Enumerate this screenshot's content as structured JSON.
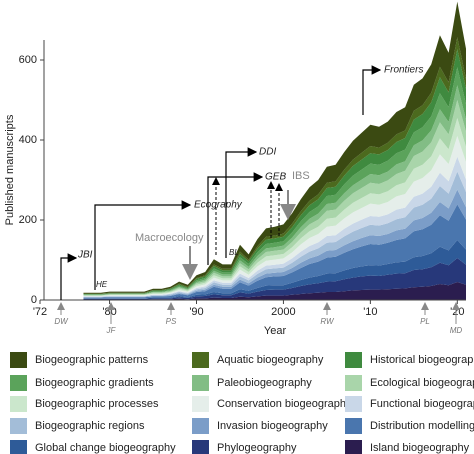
{
  "chart_data": {
    "type": "stacked_area",
    "y_label": "Published manuscripts",
    "x_label": "Year",
    "x": [
      1977,
      1978,
      1979,
      1980,
      1981,
      1982,
      1983,
      1984,
      1985,
      1986,
      1987,
      1988,
      1989,
      1990,
      1991,
      1992,
      1993,
      1994,
      1995,
      1996,
      1997,
      1998,
      1999,
      2000,
      2001,
      2002,
      2003,
      2004,
      2005,
      2006,
      2007,
      2008,
      2009,
      2010,
      2011,
      2012,
      2013,
      2014,
      2015,
      2016,
      2017,
      2018,
      2019,
      2020,
      2021
    ],
    "xlim": [
      1972,
      2021
    ],
    "xticks": [
      {
        "value": 1972,
        "label": "'72"
      },
      {
        "value": 1980,
        "label": "'80"
      },
      {
        "value": 1990,
        "label": "'90"
      },
      2000,
      {
        "value": 2010,
        "label": "'10"
      },
      {
        "value": 2020,
        "label": "'20"
      }
    ],
    "ylim": [
      0,
      750
    ],
    "yticks": [
      0,
      200,
      400,
      600
    ],
    "series": [
      {
        "name": "Biogeographic patterns",
        "color": "#3b4a12",
        "values": [
          2,
          2,
          2,
          3,
          3,
          3,
          3,
          3,
          3,
          3,
          4,
          5,
          5,
          7,
          8,
          13,
          11,
          11,
          17,
          13,
          18,
          21,
          22,
          23,
          26,
          30,
          34,
          36,
          40,
          41,
          44,
          47,
          50,
          53,
          52,
          53,
          56,
          58,
          65,
          67,
          71,
          79,
          74,
          89,
          75
        ]
      },
      {
        "name": "Aquatic biogeography",
        "color": "#4c6a1e",
        "values": [
          1,
          1,
          1,
          1,
          1,
          1,
          1,
          1,
          1,
          1,
          1,
          2,
          2,
          2,
          3,
          4,
          4,
          4,
          6,
          4,
          6,
          7,
          7,
          8,
          9,
          10,
          11,
          12,
          13,
          14,
          15,
          16,
          17,
          18,
          17,
          18,
          19,
          19,
          22,
          22,
          24,
          26,
          25,
          30,
          25
        ]
      },
      {
        "name": "Historical biogeography",
        "color": "#3f8a3f",
        "values": [
          1,
          1,
          1,
          1,
          1,
          1,
          1,
          1,
          2,
          2,
          2,
          3,
          2,
          4,
          4,
          6,
          5,
          5,
          8,
          7,
          9,
          11,
          11,
          11,
          13,
          15,
          17,
          18,
          20,
          20,
          22,
          24,
          25,
          26,
          26,
          27,
          28,
          29,
          32,
          33,
          35,
          40,
          37,
          45,
          38
        ]
      },
      {
        "name": "Biogeographic gradients",
        "color": "#5ba35b",
        "values": [
          1,
          1,
          1,
          1,
          1,
          1,
          1,
          1,
          2,
          2,
          2,
          3,
          2,
          4,
          4,
          6,
          5,
          5,
          8,
          7,
          9,
          11,
          11,
          11,
          13,
          15,
          17,
          18,
          20,
          20,
          22,
          24,
          25,
          26,
          26,
          27,
          28,
          29,
          32,
          33,
          35,
          40,
          37,
          45,
          38
        ]
      },
      {
        "name": "Paleobiogeography",
        "color": "#82bd85",
        "values": [
          1,
          1,
          1,
          1,
          1,
          1,
          1,
          1,
          1,
          1,
          2,
          2,
          2,
          3,
          4,
          5,
          5,
          5,
          7,
          6,
          8,
          9,
          9,
          10,
          11,
          13,
          14,
          15,
          17,
          17,
          19,
          20,
          21,
          22,
          22,
          22,
          24,
          24,
          27,
          28,
          30,
          33,
          31,
          37,
          31
        ]
      },
      {
        "name": "Ecological biogeography",
        "color": "#a9d5aa",
        "values": [
          1,
          1,
          1,
          1,
          1,
          1,
          1,
          1,
          2,
          2,
          2,
          3,
          2,
          4,
          4,
          6,
          5,
          5,
          8,
          7,
          9,
          11,
          11,
          11,
          13,
          15,
          17,
          18,
          20,
          20,
          22,
          24,
          25,
          26,
          26,
          27,
          28,
          29,
          32,
          33,
          35,
          40,
          37,
          45,
          38
        ]
      },
      {
        "name": "Biogeographic processes",
        "color": "#cbe7cc",
        "values": [
          1,
          1,
          1,
          1,
          1,
          1,
          1,
          1,
          2,
          2,
          2,
          3,
          2,
          4,
          4,
          6,
          5,
          5,
          8,
          7,
          9,
          11,
          11,
          11,
          13,
          15,
          17,
          18,
          20,
          20,
          22,
          24,
          25,
          26,
          26,
          27,
          28,
          29,
          32,
          33,
          35,
          40,
          37,
          45,
          38
        ]
      },
      {
        "name": "Conservation biogeography",
        "color": "#e5eeea",
        "values": [
          1,
          1,
          1,
          2,
          2,
          2,
          2,
          2,
          2,
          2,
          2,
          3,
          3,
          4,
          5,
          7,
          6,
          6,
          10,
          8,
          11,
          12,
          13,
          13,
          15,
          18,
          20,
          21,
          23,
          24,
          26,
          28,
          29,
          31,
          30,
          31,
          33,
          34,
          38,
          39,
          41,
          46,
          43,
          52,
          44
        ]
      },
      {
        "name": "Functional biogeography",
        "color": "#c9d7e8",
        "values": [
          1,
          1,
          1,
          1,
          1,
          1,
          1,
          1,
          1,
          1,
          2,
          2,
          2,
          3,
          4,
          5,
          5,
          5,
          7,
          6,
          8,
          9,
          9,
          10,
          11,
          13,
          14,
          15,
          17,
          17,
          19,
          20,
          21,
          22,
          22,
          22,
          24,
          24,
          27,
          28,
          30,
          33,
          31,
          37,
          31
        ]
      },
      {
        "name": "Biogeographic regions",
        "color": "#a3bdd8",
        "values": [
          1,
          1,
          1,
          1,
          1,
          1,
          1,
          1,
          2,
          2,
          2,
          3,
          2,
          4,
          4,
          6,
          5,
          5,
          8,
          7,
          9,
          11,
          11,
          11,
          13,
          15,
          17,
          18,
          20,
          20,
          22,
          24,
          25,
          26,
          26,
          27,
          28,
          29,
          32,
          33,
          35,
          40,
          37,
          45,
          38
        ]
      },
      {
        "name": "Invasion biogeography",
        "color": "#7b9dc8",
        "values": [
          1,
          1,
          1,
          1,
          1,
          1,
          1,
          1,
          1,
          1,
          2,
          2,
          2,
          3,
          4,
          5,
          5,
          5,
          7,
          6,
          8,
          9,
          9,
          10,
          11,
          13,
          14,
          15,
          17,
          17,
          19,
          20,
          21,
          22,
          22,
          22,
          24,
          24,
          27,
          28,
          30,
          33,
          31,
          37,
          31
        ]
      },
      {
        "name": "Distribution modelling",
        "color": "#4a76ae",
        "values": [
          2,
          2,
          2,
          3,
          3,
          3,
          3,
          3,
          3,
          3,
          4,
          5,
          5,
          7,
          8,
          13,
          11,
          11,
          17,
          13,
          18,
          21,
          22,
          23,
          26,
          30,
          34,
          36,
          40,
          41,
          44,
          47,
          50,
          53,
          52,
          53,
          56,
          58,
          65,
          67,
          71,
          79,
          74,
          89,
          75
        ]
      },
      {
        "name": "Global change biogeography",
        "color": "#2e5b98",
        "values": [
          1,
          1,
          1,
          1,
          1,
          1,
          1,
          1,
          2,
          2,
          2,
          3,
          2,
          4,
          4,
          6,
          5,
          5,
          8,
          7,
          9,
          11,
          11,
          11,
          13,
          15,
          17,
          18,
          20,
          20,
          22,
          24,
          25,
          26,
          26,
          27,
          28,
          29,
          32,
          33,
          35,
          40,
          37,
          45,
          38
        ]
      },
      {
        "name": "Phylogeography",
        "color": "#27387a",
        "values": [
          2,
          2,
          2,
          2,
          2,
          2,
          2,
          2,
          2,
          2,
          2,
          4,
          3,
          5,
          6,
          8,
          7,
          7,
          11,
          9,
          12,
          14,
          15,
          15,
          17,
          20,
          22,
          24,
          26,
          27,
          30,
          32,
          34,
          35,
          34,
          36,
          38,
          38,
          43,
          44,
          47,
          53,
          50,
          60,
          50
        ]
      },
      {
        "name": "Island biogeography",
        "color": "#2b1d4f",
        "values": [
          1,
          1,
          1,
          1,
          1,
          1,
          1,
          1,
          2,
          2,
          2,
          3,
          2,
          4,
          4,
          6,
          5,
          5,
          8,
          7,
          9,
          11,
          11,
          11,
          13,
          15,
          17,
          18,
          20,
          20,
          22,
          24,
          25,
          26,
          26,
          27,
          28,
          29,
          32,
          33,
          35,
          40,
          37,
          45,
          38
        ]
      }
    ],
    "annotations": [
      "JBI",
      "HE",
      "Ecography",
      "Macroecology",
      "BL",
      "DDI",
      "GEB",
      "IBS",
      "Frontiers"
    ],
    "milestones": [
      "DW",
      "JF",
      "PS",
      "RW",
      "PL",
      "MD"
    ]
  }
}
